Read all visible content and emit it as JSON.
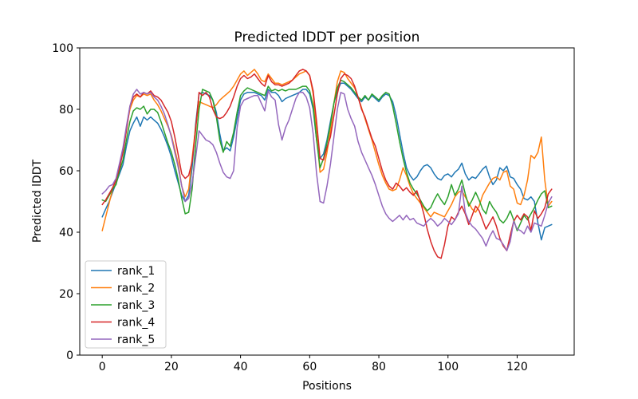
{
  "chart_data": {
    "type": "line",
    "title": "Predicted lDDT per position",
    "xlabel": "Positions",
    "ylabel": "Predicted lDDT",
    "xlim": [
      -6.5,
      136.5
    ],
    "ylim": [
      0,
      100
    ],
    "xticks": [
      0,
      20,
      40,
      60,
      80,
      100,
      120
    ],
    "yticks": [
      0,
      20,
      40,
      60,
      80,
      100
    ],
    "grid": false,
    "legend_position": "lower left",
    "x_start": 0,
    "x_step": 1,
    "frame_color": "#000000",
    "legend_edge_color": "#cccccc",
    "series": [
      {
        "name": "rank_1",
        "color": "#1f77b4",
        "values": [
          45,
          47.5,
          50,
          53,
          56,
          59,
          62,
          68,
          73,
          75.5,
          77.5,
          74.5,
          77.5,
          76.5,
          77.5,
          76.5,
          75.5,
          73.5,
          71,
          68,
          64.5,
          60,
          56,
          52,
          50,
          52,
          61,
          75,
          85,
          85.5,
          85,
          84.5,
          83,
          79,
          72,
          66.5,
          67.5,
          66.5,
          71,
          77,
          83,
          85,
          85.5,
          85.5,
          85.5,
          85,
          84.5,
          83,
          86.5,
          85.5,
          85.5,
          84.5,
          82.5,
          83.5,
          84,
          84.5,
          85,
          85.5,
          86.5,
          86.5,
          85,
          80,
          70,
          64,
          65.5,
          70,
          76,
          82,
          86,
          88.5,
          88.5,
          87.5,
          86.5,
          85,
          83.5,
          82.5,
          84,
          83,
          84.5,
          83.5,
          82.5,
          84,
          85,
          84.5,
          82.5,
          78,
          72,
          66,
          61,
          58.5,
          57,
          58,
          60,
          61.5,
          62,
          61,
          59,
          57.5,
          57,
          58.5,
          59,
          58,
          59.5,
          60.5,
          62.5,
          59,
          57,
          58,
          57.5,
          59,
          60.5,
          61.5,
          58,
          55.5,
          57,
          61,
          60,
          61.5,
          58,
          57.5,
          55.5,
          54,
          51,
          50.5,
          51.5,
          50,
          43,
          37.5,
          41.5,
          42,
          42.5
        ]
      },
      {
        "name": "rank_2",
        "color": "#ff7f0e",
        "values": [
          40.5,
          45,
          49.5,
          54,
          57,
          62,
          67,
          74,
          80,
          83,
          84.5,
          84,
          85,
          84.5,
          85,
          83,
          81.5,
          79.5,
          77,
          74.5,
          71.5,
          67,
          62,
          55,
          51.5,
          54,
          64,
          74,
          82.5,
          82,
          81.5,
          81,
          80.5,
          81.5,
          83,
          84,
          85,
          86,
          87.5,
          89.5,
          91.5,
          92.5,
          91,
          92,
          93,
          91.5,
          89.5,
          89,
          91.5,
          90,
          88.5,
          88.5,
          88,
          88.5,
          89,
          89.5,
          90.5,
          91.5,
          92,
          92.5,
          91,
          85,
          72,
          59.5,
          60.5,
          66,
          73,
          82,
          89,
          92.5,
          92,
          90,
          88.5,
          87,
          84,
          80.5,
          77,
          73.5,
          70,
          66,
          62,
          58.5,
          56,
          54,
          53.5,
          54,
          57,
          61,
          58.5,
          55,
          52.5,
          51,
          49.5,
          48,
          46.5,
          45,
          46.5,
          46,
          45.5,
          45,
          47,
          49,
          51.5,
          53,
          53.5,
          51.5,
          49.5,
          47.5,
          46.5,
          48.5,
          52,
          54,
          56,
          57.5,
          58,
          57,
          59.5,
          60,
          55,
          54,
          49.5,
          49,
          52,
          57,
          65,
          64,
          66,
          71,
          57,
          48.5,
          50
        ]
      },
      {
        "name": "rank_3",
        "color": "#2ca02c",
        "values": [
          50.5,
          50,
          52,
          54,
          55.5,
          60,
          63.5,
          70,
          76,
          79.5,
          80.5,
          80,
          81,
          78.5,
          80,
          80,
          79,
          76,
          72.5,
          69,
          66,
          62,
          57,
          51,
          46,
          46.5,
          54,
          68,
          80,
          86.5,
          86,
          85.5,
          83,
          77.5,
          70,
          66,
          69.5,
          68,
          72.5,
          79,
          84.5,
          86,
          87,
          86.5,
          86,
          85.5,
          85,
          84.5,
          87.5,
          86,
          86.5,
          86,
          86.5,
          86,
          86.5,
          86.5,
          86.5,
          87,
          87.5,
          87.5,
          86,
          81,
          70,
          61,
          64,
          69,
          75,
          82,
          87,
          89.5,
          89,
          88,
          87,
          85.5,
          84,
          83,
          84.5,
          83,
          85,
          84,
          83,
          84.5,
          85.5,
          85,
          81,
          75.5,
          69.5,
          64,
          59.5,
          56,
          54,
          52.5,
          50.5,
          48.5,
          47,
          48,
          50.5,
          52.5,
          50.5,
          49,
          51.5,
          55.5,
          52,
          54,
          57,
          52.5,
          48.5,
          50.5,
          53,
          50.5,
          47.5,
          46,
          50,
          48,
          46.5,
          44,
          43,
          44.5,
          47,
          44,
          40.5,
          43,
          45.5,
          44,
          46,
          48,
          50.5,
          52.5,
          53.5,
          48,
          48.5
        ]
      },
      {
        "name": "rank_4",
        "color": "#d62728",
        "values": [
          49,
          50.5,
          52.5,
          54.5,
          57,
          61,
          66,
          73,
          81,
          84,
          85,
          84,
          85.5,
          85,
          86,
          84.5,
          84,
          83,
          81,
          79,
          76,
          71,
          65,
          59,
          57.5,
          58.5,
          63,
          73,
          85.5,
          84.5,
          85.5,
          84,
          80,
          77.5,
          77,
          77.5,
          79,
          81,
          84,
          87.5,
          90,
          91,
          90,
          90.5,
          91.5,
          90,
          88.5,
          87.5,
          91,
          89,
          88,
          88,
          87.5,
          88,
          88.5,
          89.5,
          91,
          92.5,
          93,
          92.5,
          91,
          86,
          76,
          64,
          63.5,
          67.5,
          71,
          78,
          85,
          90,
          91.5,
          91,
          90,
          87.5,
          84,
          80,
          77.5,
          74,
          70.5,
          68,
          64,
          60,
          57,
          55,
          54,
          56,
          55,
          53.5,
          54.5,
          53,
          52,
          53.5,
          50,
          46,
          41,
          37,
          34,
          32,
          31.5,
          36,
          42,
          45,
          44,
          46.5,
          48.5,
          46,
          42.5,
          45.5,
          48.5,
          47,
          44,
          41,
          43,
          45,
          42,
          38,
          35.5,
          34,
          39,
          43.5,
          45.5,
          44,
          46,
          45,
          40.5,
          47,
          44.5,
          46,
          48,
          52.5,
          54
        ]
      },
      {
        "name": "rank_5",
        "color": "#9467bd",
        "values": [
          52.5,
          53.5,
          55,
          55.5,
          57.5,
          62.5,
          67.5,
          74.5,
          81,
          85,
          86.5,
          85,
          85.5,
          85,
          85.5,
          84,
          83,
          81,
          78.5,
          75,
          71,
          66,
          61,
          55,
          50,
          51,
          56,
          64,
          73,
          71.5,
          70,
          69.5,
          68.5,
          66,
          62.5,
          59.5,
          58,
          57.5,
          60,
          74,
          81,
          83,
          83.5,
          84,
          84.5,
          84.5,
          82,
          79.5,
          86,
          84,
          83,
          75,
          70,
          74,
          76.5,
          80,
          83.5,
          85.5,
          85.5,
          84,
          80.5,
          72,
          59,
          50,
          49.5,
          55,
          62,
          71,
          80,
          85.5,
          85,
          80,
          77,
          74.5,
          69.5,
          66,
          63.5,
          61,
          58.5,
          55.5,
          52,
          48.5,
          46,
          44.5,
          43.5,
          44.5,
          45.5,
          44,
          45.5,
          44,
          44.5,
          43,
          42.5,
          42,
          43.5,
          44.5,
          43.5,
          42,
          43,
          44.5,
          43.5,
          42.5,
          44,
          46,
          55,
          46.5,
          43.5,
          42,
          41,
          39.5,
          38,
          35.5,
          38.5,
          40.5,
          38,
          37.5,
          36,
          34,
          37,
          43.5,
          41,
          40.5,
          39.5,
          42,
          40,
          43,
          42.5,
          42,
          45.5,
          49.5,
          51.5
        ]
      }
    ]
  }
}
